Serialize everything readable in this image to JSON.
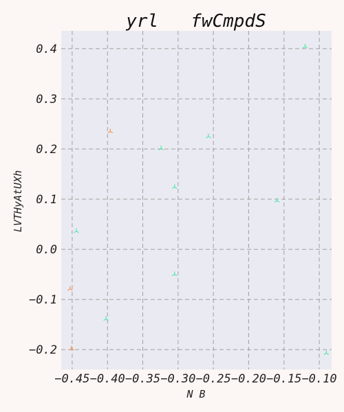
{
  "chart_data": {
    "type": "scatter",
    "title": "yrl   fwCmpdS",
    "xlabel": "N B",
    "ylabel": "LVTHyAtUXh",
    "xlim": [
      -0.4655,
      -0.0825
    ],
    "ylim": [
      -0.2395,
      0.4355
    ],
    "xticks": [
      -0.45,
      -0.4,
      -0.35,
      -0.3,
      -0.25,
      -0.2,
      -0.15,
      -0.1
    ],
    "xtick_labels": [
      "−0.45",
      "−0.40",
      "−0.35",
      "−0.30",
      "−0.25",
      "−0.20",
      "−0.15",
      "−0.10"
    ],
    "yticks": [
      0.4,
      0.3,
      0.2,
      0.1,
      0.0,
      -0.1,
      -0.2
    ],
    "ytick_labels": [
      "0.4",
      "0.3",
      "0.2",
      "0.1",
      "0.0",
      "−0.1",
      "−0.2"
    ],
    "grid": true,
    "marker": "tri",
    "series": [
      {
        "color": "#f5965a",
        "points": [
          {
            "x": -0.396,
            "y": 0.235
          },
          {
            "x": -0.453,
            "y": -0.079
          },
          {
            "x": -0.451,
            "y": -0.198
          }
        ]
      },
      {
        "color": "#4ee8a8",
        "points": [
          {
            "x": -0.444,
            "y": 0.036
          },
          {
            "x": -0.402,
            "y": -0.139
          },
          {
            "x": -0.324,
            "y": 0.201
          },
          {
            "x": -0.305,
            "y": 0.124
          },
          {
            "x": -0.305,
            "y": -0.05
          },
          {
            "x": -0.257,
            "y": 0.225
          },
          {
            "x": -0.16,
            "y": 0.097
          },
          {
            "x": -0.12,
            "y": 0.404
          },
          {
            "x": -0.09,
            "y": -0.207
          }
        ]
      }
    ]
  }
}
